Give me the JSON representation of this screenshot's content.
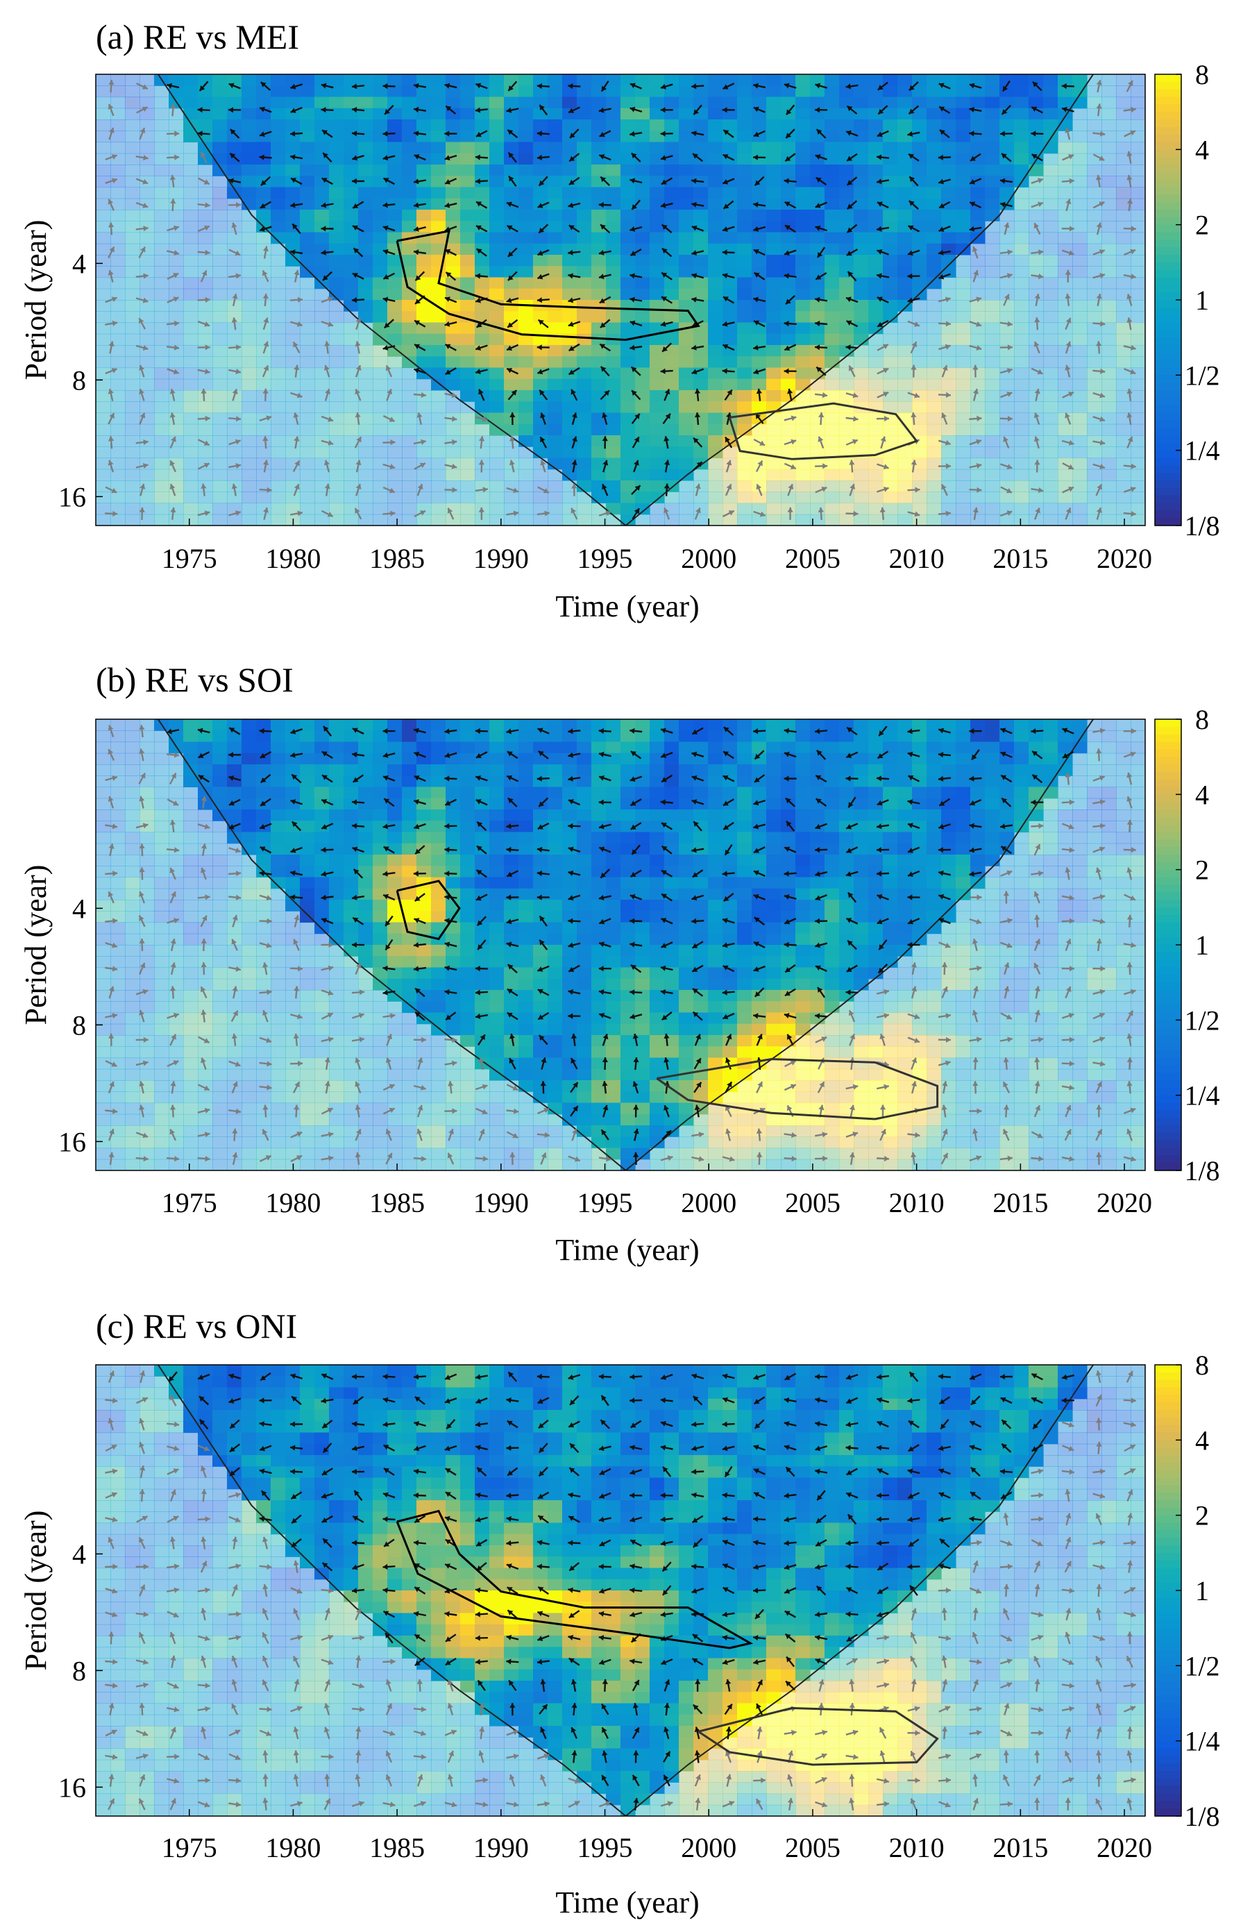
{
  "chart_data": [
    {
      "type": "heatmap",
      "panel_label": "(a)",
      "title": "(a) RE vs MEI",
      "xlabel": "Time (year)",
      "ylabel": "Period (year)",
      "xlim": [
        1970.5,
        2021.0
      ],
      "ylim": [
        1.3,
        19
      ],
      "xticks": [
        "1975",
        "1980",
        "1985",
        "1990",
        "1995",
        "2000",
        "2005",
        "2010",
        "2015",
        "2020"
      ],
      "yticks": [
        "4",
        "8",
        "16"
      ],
      "colorbar": {
        "ticks": [
          "8",
          "4",
          "2",
          "1",
          "1/2",
          "1/4",
          "1/8"
        ],
        "range": [
          0.125,
          8
        ]
      },
      "cone_of_influence": {
        "x": [
          1973.5,
          1978,
          1983,
          1988,
          1993,
          1996,
          1999,
          2004,
          2009,
          2014,
          2018.5
        ],
        "period": [
          1.3,
          3.0,
          5.5,
          9.0,
          14.0,
          19.0,
          14.0,
          9.0,
          5.5,
          3.0,
          1.3
        ]
      },
      "hotspots": [
        {
          "x": 1987,
          "period": 4.2,
          "power": 3.0,
          "sx": 2.5,
          "sp": 0.18
        },
        {
          "x": 1992,
          "period": 5.5,
          "power": 3.5,
          "sx": 4.5,
          "sp": 0.12
        },
        {
          "x": 2003,
          "period": 11,
          "power": 3.5,
          "sx": 4.5,
          "sp": 0.15
        },
        {
          "x": 2008,
          "period": 11.5,
          "power": 3.0,
          "sx": 4.0,
          "sp": 0.18
        }
      ],
      "significance_contours": [
        {
          "x": [
            1985.0,
            1987.5,
            1987.0,
            1990.0,
            1994.0,
            1999.0,
            1999.5,
            1996.0,
            1991.0,
            1987.5,
            1985.5,
            1985.0
          ],
          "period": [
            3.5,
            3.3,
            4.5,
            5.1,
            5.2,
            5.3,
            5.8,
            6.3,
            6.1,
            5.4,
            4.6,
            3.5
          ]
        },
        {
          "x": [
            2001.0,
            2006.0,
            2009.0,
            2010.0,
            2008.0,
            2004.0,
            2001.5,
            2001.0
          ],
          "period": [
            10.0,
            9.2,
            9.8,
            11.5,
            12.5,
            12.8,
            12.2,
            10.0
          ]
        }
      ]
    },
    {
      "type": "heatmap",
      "panel_label": "(b)",
      "title": "(b) RE vs SOI",
      "xlabel": "Time (year)",
      "ylabel": "Period (year)",
      "xlim": [
        1970.5,
        2021.0
      ],
      "ylim": [
        1.3,
        19
      ],
      "xticks": [
        "1975",
        "1980",
        "1985",
        "1990",
        "1995",
        "2000",
        "2005",
        "2010",
        "2015",
        "2020"
      ],
      "yticks": [
        "4",
        "8",
        "16"
      ],
      "colorbar": {
        "ticks": [
          "8",
          "4",
          "2",
          "1",
          "1/2",
          "1/4",
          "1/8"
        ],
        "range": [
          0.125,
          8
        ]
      },
      "cone_of_influence": {
        "x": [
          1973.5,
          1978,
          1983,
          1988,
          1993,
          1996,
          1999,
          2004,
          2009,
          2014,
          2018.5
        ],
        "period": [
          1.3,
          3.0,
          5.5,
          9.0,
          14.0,
          19.0,
          14.0,
          9.0,
          5.5,
          3.0,
          1.3
        ]
      },
      "hotspots": [
        {
          "x": 1986,
          "period": 4.0,
          "power": 2.8,
          "sx": 2.5,
          "sp": 0.15
        },
        {
          "x": 2002,
          "period": 11.5,
          "power": 4.0,
          "sx": 4.5,
          "sp": 0.15
        },
        {
          "x": 2008,
          "period": 12,
          "power": 3.0,
          "sx": 4.0,
          "sp": 0.18
        }
      ],
      "significance_contours": [
        {
          "x": [
            1985.0,
            1987.0,
            1988.0,
            1987.0,
            1985.5,
            1985.0
          ],
          "period": [
            3.6,
            3.4,
            4.0,
            4.8,
            4.6,
            3.6
          ]
        },
        {
          "x": [
            1997.5,
            2003.0,
            2008.0,
            2011.0,
            2011.0,
            2008.0,
            2003.0,
            1999.0,
            1997.5
          ],
          "period": [
            11.0,
            9.8,
            10.0,
            11.5,
            13.0,
            14.0,
            13.5,
            12.5,
            11.0
          ]
        }
      ]
    },
    {
      "type": "heatmap",
      "panel_label": "(c)",
      "title": "(c) RE vs ONI",
      "xlabel": "Time (year)",
      "ylabel": "Period (year)",
      "xlim": [
        1970.5,
        2021.0
      ],
      "ylim": [
        1.3,
        19
      ],
      "xticks": [
        "1975",
        "1980",
        "1985",
        "1990",
        "1995",
        "2000",
        "2005",
        "2010",
        "2015",
        "2020"
      ],
      "yticks": [
        "4",
        "8",
        "16"
      ],
      "colorbar": {
        "ticks": [
          "8",
          "4",
          "2",
          "1",
          "1/2",
          "1/4",
          "1/8"
        ],
        "range": [
          0.125,
          8
        ]
      },
      "cone_of_influence": {
        "x": [
          1973.5,
          1978,
          1983,
          1988,
          1993,
          1996,
          1999,
          2004,
          2009,
          2014,
          2018.5
        ],
        "period": [
          1.3,
          3.0,
          5.5,
          9.0,
          14.0,
          19.0,
          14.0,
          9.0,
          5.5,
          3.0,
          1.3
        ]
      },
      "hotspots": [
        {
          "x": 1987,
          "period": 4.0,
          "power": 3.2,
          "sx": 2.5,
          "sp": 0.18
        },
        {
          "x": 1993,
          "period": 5.5,
          "power": 3.5,
          "sx": 5.0,
          "sp": 0.12
        },
        {
          "x": 2003,
          "period": 11.5,
          "power": 3.8,
          "sx": 4.5,
          "sp": 0.15
        },
        {
          "x": 2008,
          "period": 12,
          "power": 3.0,
          "sx": 4.0,
          "sp": 0.18
        }
      ],
      "significance_contours": [
        {
          "x": [
            1985.0,
            1987.0,
            1988.0,
            1990.0,
            1994.0,
            1999.0,
            2002.0,
            2001.0,
            1996.0,
            1990.0,
            1986.0,
            1985.0
          ],
          "period": [
            3.3,
            3.1,
            4.0,
            5.0,
            5.5,
            5.5,
            6.8,
            7.0,
            6.4,
            5.8,
            4.5,
            3.3
          ]
        },
        {
          "x": [
            1999.5,
            2004.0,
            2009.0,
            2011.0,
            2010.0,
            2005.0,
            2001.0,
            1999.5
          ],
          "period": [
            11.5,
            10.0,
            10.2,
            12.0,
            13.8,
            14.0,
            13.0,
            11.5
          ]
        }
      ]
    }
  ]
}
